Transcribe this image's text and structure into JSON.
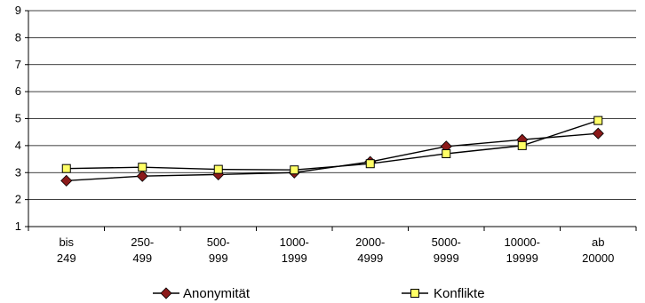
{
  "chart_data": {
    "type": "line",
    "categories": [
      [
        "bis",
        "249"
      ],
      [
        "250-",
        "499"
      ],
      [
        "500-",
        "999"
      ],
      [
        "1000-",
        "1999"
      ],
      [
        "2000-",
        "4999"
      ],
      [
        "5000-",
        "9999"
      ],
      [
        "10000-",
        "19999"
      ],
      [
        "ab",
        "20000"
      ]
    ],
    "series": [
      {
        "name": "Anonymität",
        "marker": "diamond",
        "line_color": "#000000",
        "marker_color": "#8b1a1a",
        "values": [
          2.7,
          2.87,
          2.93,
          3.0,
          3.4,
          3.97,
          4.22,
          4.45
        ]
      },
      {
        "name": "Konflikte",
        "marker": "square",
        "line_color": "#000000",
        "marker_color": "#ffff66",
        "values": [
          3.15,
          3.2,
          3.12,
          3.1,
          3.33,
          3.7,
          4.0,
          4.93
        ]
      }
    ],
    "ylim": [
      1,
      9
    ],
    "yticks": [
      "1",
      "2",
      "3",
      "4",
      "5",
      "6",
      "7",
      "8",
      "9"
    ],
    "grid": true,
    "legend_position": "bottom"
  }
}
